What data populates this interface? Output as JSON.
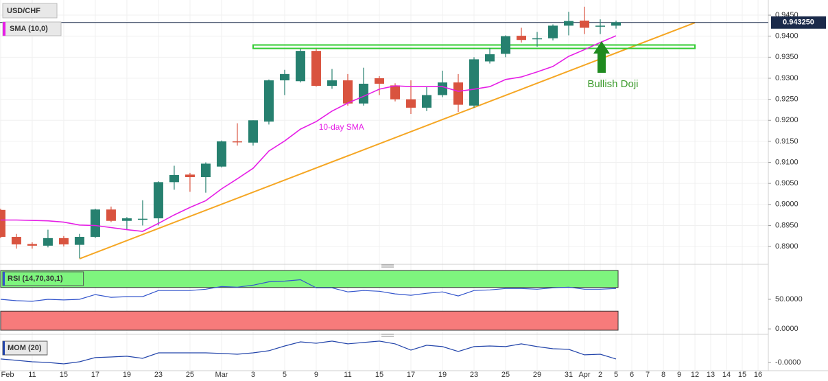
{
  "chart_data": [
    {
      "type": "candlestick",
      "title": "USD/CHF",
      "x": [
        0,
        1,
        2,
        3,
        4,
        5,
        6,
        7,
        8,
        9,
        10,
        11,
        12,
        13,
        14,
        15,
        16,
        17,
        18,
        19,
        20,
        21,
        22,
        23,
        24,
        25,
        26,
        27,
        28,
        29,
        30,
        31,
        32,
        33,
        34,
        35,
        36,
        37,
        38,
        39
      ],
      "open": [
        0.8987,
        0.8923,
        0.8906,
        0.8902,
        0.892,
        0.8904,
        0.8923,
        0.8988,
        0.8961,
        0.8965,
        0.8967,
        0.9053,
        0.9071,
        0.9065,
        0.909,
        0.915,
        0.9147,
        0.9197,
        0.9295,
        0.9293,
        0.9365,
        0.9282,
        0.9295,
        0.924,
        0.93,
        0.9283,
        0.925,
        0.923,
        0.926,
        0.929,
        0.9235,
        0.934,
        0.9358,
        0.9401,
        0.9394,
        0.9395,
        0.9425,
        0.9437,
        0.9424,
        0.9425
      ],
      "high": [
        0.899,
        0.893,
        0.891,
        0.894,
        0.8925,
        0.893,
        0.899,
        0.8995,
        0.897,
        0.901,
        0.9055,
        0.9092,
        0.9075,
        0.91,
        0.9152,
        0.9193,
        0.92,
        0.9297,
        0.932,
        0.937,
        0.937,
        0.9322,
        0.931,
        0.9325,
        0.9305,
        0.9288,
        0.9295,
        0.928,
        0.9318,
        0.931,
        0.935,
        0.9372,
        0.9402,
        0.942,
        0.941,
        0.9428,
        0.9458,
        0.947,
        0.944,
        0.9437
      ],
      "low": [
        0.892,
        0.8895,
        0.8895,
        0.8898,
        0.89,
        0.8872,
        0.892,
        0.8958,
        0.894,
        0.895,
        0.895,
        0.9035,
        0.903,
        0.9028,
        0.9088,
        0.914,
        0.914,
        0.919,
        0.926,
        0.929,
        0.928,
        0.9275,
        0.9235,
        0.9235,
        0.926,
        0.9245,
        0.9215,
        0.9222,
        0.9255,
        0.922,
        0.923,
        0.9335,
        0.935,
        0.9385,
        0.9375,
        0.939,
        0.9402,
        0.9405,
        0.9405,
        0.9418
      ],
      "close": [
        0.8923,
        0.8905,
        0.8902,
        0.892,
        0.8905,
        0.8923,
        0.8988,
        0.8961,
        0.8967,
        0.8966,
        0.9053,
        0.907,
        0.9065,
        0.9097,
        0.915,
        0.9148,
        0.92,
        0.9295,
        0.931,
        0.9365,
        0.9282,
        0.9295,
        0.924,
        0.9287,
        0.9287,
        0.925,
        0.923,
        0.926,
        0.929,
        0.9237,
        0.9345,
        0.9357,
        0.94,
        0.9391,
        0.9395,
        0.9425,
        0.9436,
        0.942,
        0.9425,
        0.9433
      ],
      "up_color": "#26806f",
      "down_color": "#d9533f",
      "series": [
        {
          "name": "SMA (10,0)",
          "color": "#e61ee6",
          "values": [
            0.8963,
            0.8963,
            0.8962,
            0.8961,
            0.8958,
            0.8951,
            0.895,
            0.8945,
            0.894,
            0.8936,
            0.8955,
            0.8975,
            0.8993,
            0.9009,
            0.9037,
            0.9061,
            0.9086,
            0.9127,
            0.9151,
            0.9179,
            0.9197,
            0.9222,
            0.9241,
            0.9257,
            0.9274,
            0.9282,
            0.928,
            0.928,
            0.928,
            0.9269,
            0.9274,
            0.928,
            0.9297,
            0.9303,
            0.9315,
            0.9328,
            0.9352,
            0.9368,
            0.9385,
            0.9401
          ]
        }
      ],
      "trendline": {
        "x": [
          5,
          44
        ],
        "values": [
          0.8871,
          0.9432
        ],
        "color": "#f5a623"
      },
      "resistance": {
        "x": [
          16,
          44
        ],
        "value": 0.9375,
        "color": "#33cc33"
      },
      "annotations": [
        {
          "text": "10-day SMA",
          "x": 21.6,
          "y": 0.9183,
          "color": "#e61ee6"
        },
        {
          "text": "Bullish Doji",
          "x": 38.8,
          "y": 0.9285,
          "color": "#3a9a2a"
        }
      ],
      "last_price": {
        "value": 0.94325,
        "label": "0.943250"
      },
      "xlim": [
        -0.04,
        48.65
      ],
      "ylim": [
        0.8861,
        0.9486
      ],
      "xticks": [
        {
          "value": 0,
          "label": "Feb"
        },
        {
          "value": 2,
          "label": "11"
        },
        {
          "value": 4,
          "label": "15"
        },
        {
          "value": 6,
          "label": "17"
        },
        {
          "value": 8,
          "label": "19"
        },
        {
          "value": 10,
          "label": "23"
        },
        {
          "value": 12,
          "label": "25"
        },
        {
          "value": 14,
          "label": "Mar"
        },
        {
          "value": 16,
          "label": "3"
        },
        {
          "value": 18,
          "label": "5"
        },
        {
          "value": 20,
          "label": "9"
        },
        {
          "value": 22,
          "label": "11"
        },
        {
          "value": 24,
          "label": "15"
        },
        {
          "value": 26,
          "label": "17"
        },
        {
          "value": 28,
          "label": "19"
        },
        {
          "value": 30,
          "label": "23"
        },
        {
          "value": 32,
          "label": "25"
        },
        {
          "value": 34,
          "label": "29"
        },
        {
          "value": 36,
          "label": "31"
        },
        {
          "value": 37,
          "label": "Apr"
        },
        {
          "value": 38,
          "label": "2"
        },
        {
          "value": 39,
          "label": "5"
        },
        {
          "value": 40,
          "label": "6"
        },
        {
          "value": 41,
          "label": "7"
        },
        {
          "value": 42,
          "label": "8"
        },
        {
          "value": 43,
          "label": "9"
        },
        {
          "value": 44,
          "label": "12"
        },
        {
          "value": 45,
          "label": "13"
        },
        {
          "value": 46,
          "label": "14"
        },
        {
          "value": 47,
          "label": "15"
        },
        {
          "value": 48,
          "label": "16"
        }
      ],
      "yticks": [
        {
          "value": 0.945,
          "label": "0.9450"
        },
        {
          "value": 0.94,
          "label": "0.9400"
        },
        {
          "value": 0.935,
          "label": "0.9350"
        },
        {
          "value": 0.93,
          "label": "0.9300"
        },
        {
          "value": 0.925,
          "label": "0.9250"
        },
        {
          "value": 0.92,
          "label": "0.9200"
        },
        {
          "value": 0.915,
          "label": "0.9150"
        },
        {
          "value": 0.91,
          "label": "0.9100"
        },
        {
          "value": 0.905,
          "label": "0.9050"
        },
        {
          "value": 0.9,
          "label": "0.9000"
        },
        {
          "value": 0.895,
          "label": "0.8950"
        },
        {
          "value": 0.89,
          "label": "0.8900"
        }
      ],
      "grid": true
    },
    {
      "type": "line",
      "title": "RSI (14,70,30,1)",
      "color": "#3355cc",
      "values": [
        50,
        47.7,
        46.6,
        50,
        48.9,
        50,
        58,
        53.4,
        54.5,
        54.5,
        64.8,
        64.8,
        64.8,
        67,
        71.6,
        70.5,
        73.9,
        79.5,
        80.7,
        83,
        69.3,
        69.3,
        62.5,
        64.8,
        63.6,
        59.1,
        56.8,
        60.2,
        62.5,
        55.7,
        64.8,
        65.9,
        68.2,
        68.2,
        67,
        69.3,
        70.5,
        67,
        67,
        68.2
      ],
      "overbought": 70,
      "oversold": 30,
      "overbought_color": "#7ef57e",
      "oversold_color": "#f77b7b",
      "ylim": [
        -4.5,
        101
      ],
      "yticks": [
        {
          "value": 50,
          "label": "50.0000"
        },
        {
          "value": 0,
          "label": "0.0000"
        }
      ]
    },
    {
      "type": "line",
      "title": "MOM (20)",
      "color": "#2244aa",
      "values": [
        0.0063,
        0.0038,
        0.0013,
        0,
        -0.0025,
        0.0013,
        0.0088,
        0.01,
        0.0113,
        0.0075,
        0.0175,
        0.0175,
        0.0175,
        0.0175,
        0.0163,
        0.015,
        0.0175,
        0.0213,
        0.03,
        0.0375,
        0.035,
        0.0388,
        0.0338,
        0.0363,
        0.0388,
        0.0338,
        0.0225,
        0.0313,
        0.0288,
        0.02,
        0.0288,
        0.03,
        0.0288,
        0.0338,
        0.0288,
        0.025,
        0.0238,
        0.0138,
        0.015,
        0.0063
      ],
      "ylim": [
        -0.0125,
        0.0437
      ],
      "yticks": [
        {
          "value": 0,
          "label": "-0.0000"
        }
      ]
    }
  ]
}
